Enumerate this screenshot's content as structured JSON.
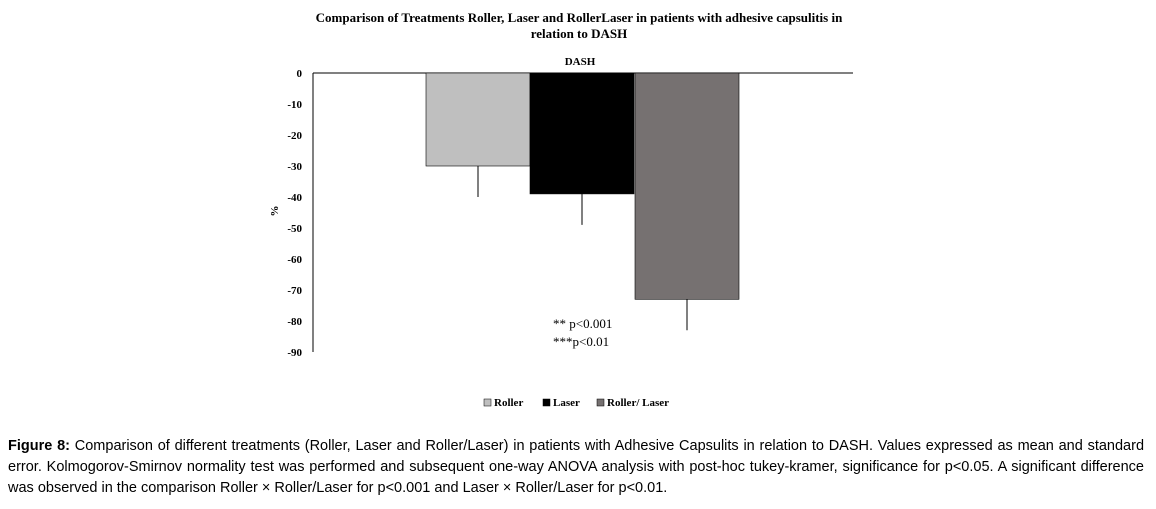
{
  "chart_data": {
    "type": "bar",
    "title_line1": "Comparison of Treatments Roller, Laser and RollerLaser in patients with adhesive capsulitis in",
    "title_line2": "relation to DASH",
    "subtitle": "DASH",
    "ylabel": "%",
    "ylim": [
      -90,
      0
    ],
    "yticks": [
      0,
      -10,
      -20,
      -30,
      -40,
      -50,
      -60,
      -70,
      -80,
      -90
    ],
    "categories": [
      "Roller",
      "Laser",
      "Roller/ Laser"
    ],
    "values": [
      -30,
      -39,
      -73
    ],
    "errors": [
      10,
      10,
      10
    ],
    "colors": [
      "#bfbfbf",
      "#000000",
      "#767171"
    ],
    "legend": [
      "Roller",
      "Laser",
      "Roller/ Laser"
    ],
    "legend_position": "bottom",
    "annotations": [
      "** p<0.001",
      "***p<0.01"
    ],
    "grid": false
  },
  "caption": {
    "label": "Figure 8:",
    "text": "Comparison of different treatments (Roller, Laser and Roller/Laser) in patients with Adhesive Capsulits in relation to DASH. Values expressed as mean and standard error. Kolmogorov-Smirnov normality test was performed and subsequent one-way ANOVA analysis with post-hoc tukey-kramer, significance for p<0.05. A significant difference was observed in the comparison Roller × Roller/Laser for p<0.001 and Laser × Roller/Laser for p<0.01."
  }
}
